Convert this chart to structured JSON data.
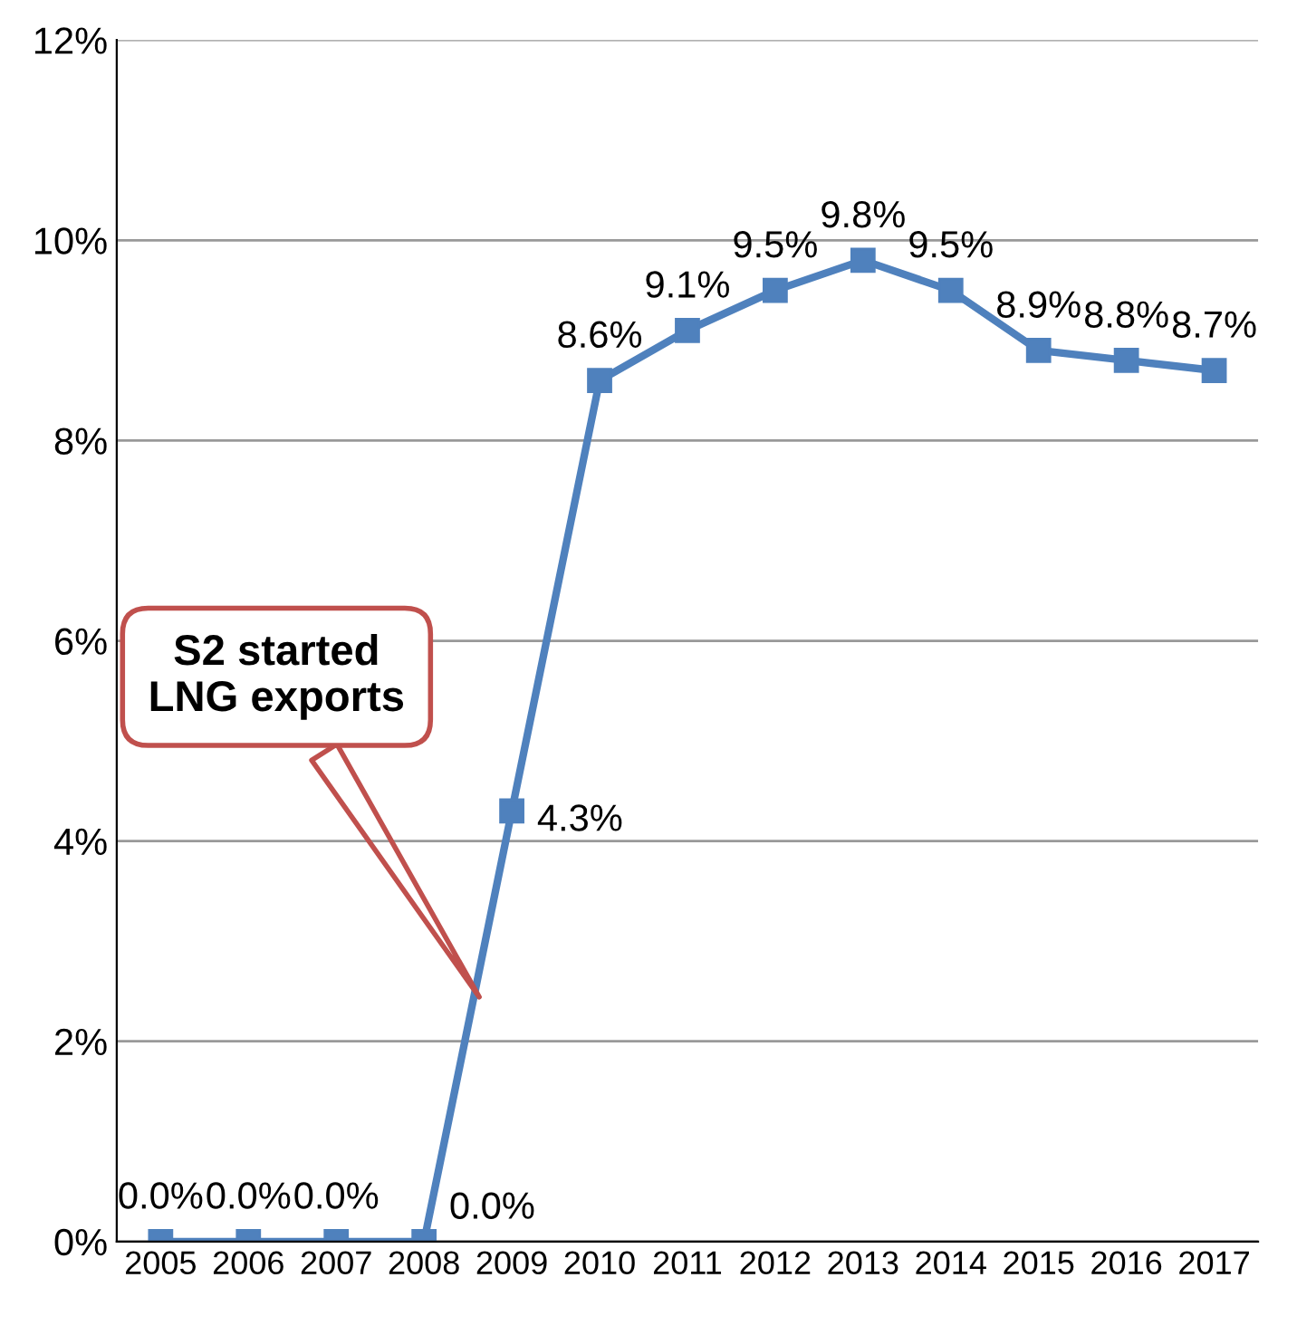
{
  "chart_data": {
    "type": "line",
    "categories": [
      "2005",
      "2006",
      "2007",
      "2008",
      "2009",
      "2010",
      "2011",
      "2012",
      "2013",
      "2014",
      "2015",
      "2016",
      "2017"
    ],
    "series": [
      {
        "color": "#4f81bd",
        "values": [
          0.0,
          0.0,
          0.0,
          0.0,
          4.3,
          8.6,
          9.1,
          9.5,
          9.8,
          9.5,
          8.9,
          8.8,
          8.7
        ],
        "value_labels": [
          "0.0%",
          "0.0%",
          "0.0%",
          "0.0%",
          "4.3%",
          "8.6%",
          "9.1%",
          "9.5%",
          "9.8%",
          "9.5%",
          "8.9%",
          "8.8%",
          "8.7%"
        ]
      }
    ],
    "ylim": [
      0,
      12
    ],
    "yticks": [
      {
        "value": 0,
        "label": "0%"
      },
      {
        "value": 2,
        "label": "2%"
      },
      {
        "value": 4,
        "label": "4%"
      },
      {
        "value": 6,
        "label": "6%"
      },
      {
        "value": 8,
        "label": "8%"
      },
      {
        "value": 10,
        "label": "10%"
      },
      {
        "value": 12,
        "label": "12%"
      }
    ],
    "grid": "y",
    "marker": "square",
    "line_style": "solid",
    "annotations": [
      "S2 started\nLNG exports"
    ]
  }
}
